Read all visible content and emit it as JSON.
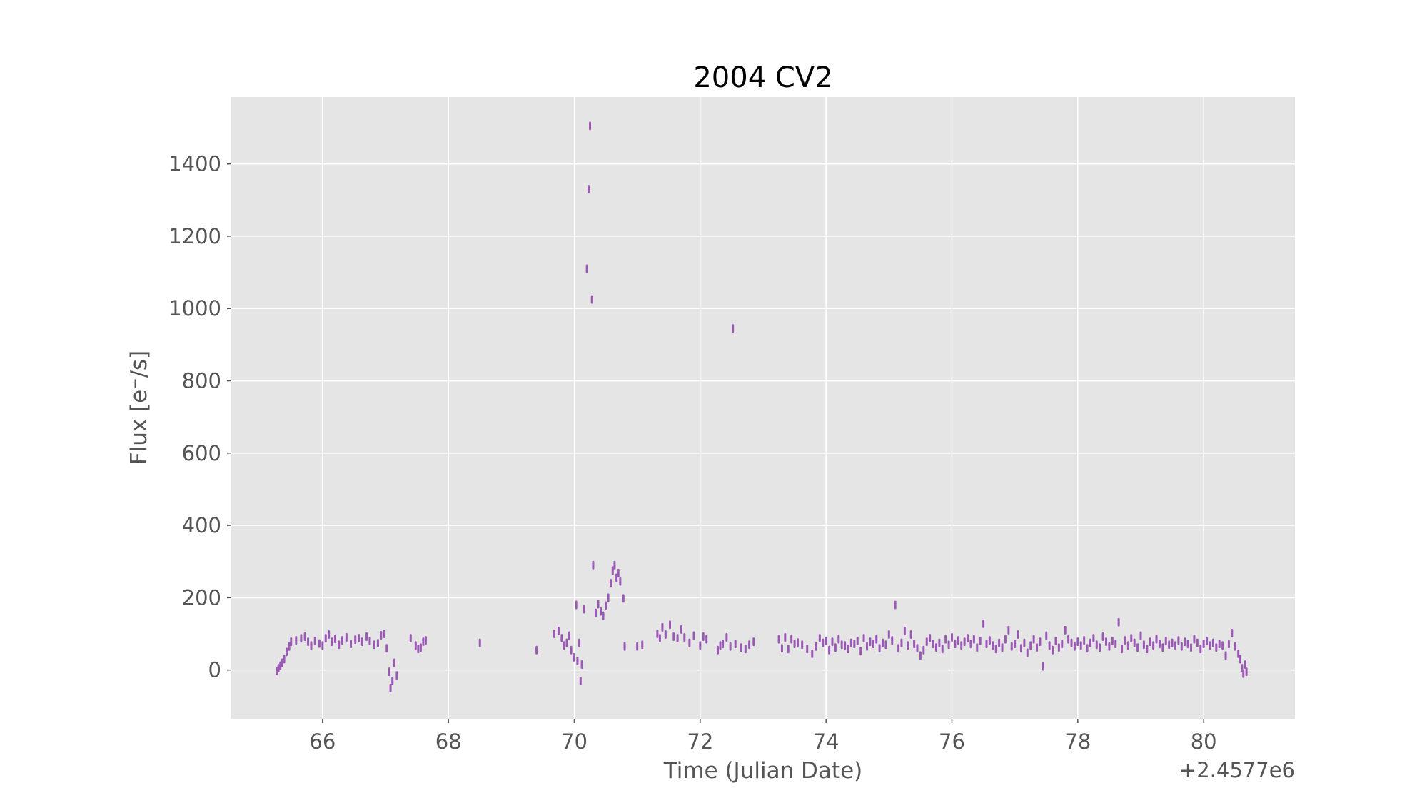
{
  "chart_data": {
    "type": "scatter",
    "title": "2004 CV2",
    "xlabel": "Time (Julian Date)",
    "ylabel": "Flux [e⁻/s]",
    "x_offset_label": "+2.4577e6",
    "xlim": [
      64.55,
      81.45
    ],
    "ylim": [
      -135,
      1585
    ],
    "xticks": [
      66,
      68,
      70,
      72,
      74,
      76,
      78,
      80
    ],
    "yticks": [
      0,
      200,
      400,
      600,
      800,
      1000,
      1200,
      1400
    ],
    "grid": true,
    "background": "#e5e5e5",
    "marker_color": "#9b59b6",
    "series": [
      {
        "name": "",
        "points": [
          [
            65.28,
            -3
          ],
          [
            65.3,
            5
          ],
          [
            65.33,
            12
          ],
          [
            65.36,
            20
          ],
          [
            65.39,
            30
          ],
          [
            65.43,
            50
          ],
          [
            65.47,
            65
          ],
          [
            65.5,
            78
          ],
          [
            65.58,
            82
          ],
          [
            65.66,
            88
          ],
          [
            65.72,
            92
          ],
          [
            65.77,
            78
          ],
          [
            65.82,
            68
          ],
          [
            65.88,
            80
          ],
          [
            65.95,
            73
          ],
          [
            66.0,
            68
          ],
          [
            66.05,
            88
          ],
          [
            66.1,
            98
          ],
          [
            66.15,
            78
          ],
          [
            66.2,
            86
          ],
          [
            66.26,
            70
          ],
          [
            66.31,
            82
          ],
          [
            66.38,
            90
          ],
          [
            66.45,
            72
          ],
          [
            66.52,
            84
          ],
          [
            66.58,
            88
          ],
          [
            66.63,
            78
          ],
          [
            66.7,
            92
          ],
          [
            66.75,
            80
          ],
          [
            66.82,
            70
          ],
          [
            66.88,
            74
          ],
          [
            66.93,
            96
          ],
          [
            66.98,
            100
          ],
          [
            67.02,
            60
          ],
          [
            67.06,
            -5
          ],
          [
            67.08,
            -50
          ],
          [
            67.11,
            -30
          ],
          [
            67.14,
            20
          ],
          [
            67.18,
            -15
          ],
          [
            67.4,
            88
          ],
          [
            67.48,
            68
          ],
          [
            67.52,
            58
          ],
          [
            67.56,
            62
          ],
          [
            67.6,
            78
          ],
          [
            67.64,
            82
          ],
          [
            68.5,
            75
          ],
          [
            69.4,
            55
          ],
          [
            69.68,
            100
          ],
          [
            69.75,
            108
          ],
          [
            69.8,
            88
          ],
          [
            69.84,
            68
          ],
          [
            69.88,
            75
          ],
          [
            69.92,
            95
          ],
          [
            69.95,
            55
          ],
          [
            69.99,
            35
          ],
          [
            70.03,
            180
          ],
          [
            70.05,
            25
          ],
          [
            70.08,
            75
          ],
          [
            70.1,
            -30
          ],
          [
            70.12,
            15
          ],
          [
            70.15,
            168
          ],
          [
            70.2,
            1110
          ],
          [
            70.23,
            1330
          ],
          [
            70.25,
            1505
          ],
          [
            70.28,
            1025
          ],
          [
            70.3,
            290
          ],
          [
            70.34,
            158
          ],
          [
            70.38,
            182
          ],
          [
            70.42,
            162
          ],
          [
            70.46,
            150
          ],
          [
            70.5,
            178
          ],
          [
            70.54,
            200
          ],
          [
            70.58,
            240
          ],
          [
            70.61,
            275
          ],
          [
            70.64,
            290
          ],
          [
            70.67,
            255
          ],
          [
            70.7,
            268
          ],
          [
            70.73,
            245
          ],
          [
            70.78,
            198
          ],
          [
            70.8,
            65
          ],
          [
            71.0,
            65
          ],
          [
            71.08,
            70
          ],
          [
            71.32,
            100
          ],
          [
            71.36,
            88
          ],
          [
            71.4,
            118
          ],
          [
            71.45,
            98
          ],
          [
            71.52,
            125
          ],
          [
            71.58,
            92
          ],
          [
            71.64,
            88
          ],
          [
            71.7,
            112
          ],
          [
            71.75,
            90
          ],
          [
            71.83,
            75
          ],
          [
            71.9,
            95
          ],
          [
            72.0,
            68
          ],
          [
            72.05,
            92
          ],
          [
            72.1,
            85
          ],
          [
            72.28,
            55
          ],
          [
            72.32,
            68
          ],
          [
            72.36,
            72
          ],
          [
            72.42,
            90
          ],
          [
            72.48,
            65
          ],
          [
            72.52,
            945
          ],
          [
            72.56,
            72
          ],
          [
            72.65,
            62
          ],
          [
            72.72,
            58
          ],
          [
            72.78,
            70
          ],
          [
            72.85,
            78
          ],
          [
            73.25,
            85
          ],
          [
            73.3,
            60
          ],
          [
            73.35,
            90
          ],
          [
            73.4,
            58
          ],
          [
            73.45,
            85
          ],
          [
            73.5,
            72
          ],
          [
            73.55,
            76
          ],
          [
            73.62,
            70
          ],
          [
            73.7,
            58
          ],
          [
            73.78,
            45
          ],
          [
            73.84,
            65
          ],
          [
            73.9,
            88
          ],
          [
            73.95,
            75
          ],
          [
            74.0,
            80
          ],
          [
            74.05,
            55
          ],
          [
            74.1,
            78
          ],
          [
            74.15,
            62
          ],
          [
            74.2,
            85
          ],
          [
            74.25,
            70
          ],
          [
            74.3,
            68
          ],
          [
            74.35,
            58
          ],
          [
            74.4,
            75
          ],
          [
            74.45,
            72
          ],
          [
            74.5,
            80
          ],
          [
            74.55,
            52
          ],
          [
            74.6,
            88
          ],
          [
            74.65,
            65
          ],
          [
            74.7,
            78
          ],
          [
            74.75,
            72
          ],
          [
            74.8,
            85
          ],
          [
            74.85,
            60
          ],
          [
            74.9,
            75
          ],
          [
            74.95,
            70
          ],
          [
            75.0,
            98
          ],
          [
            75.05,
            82
          ],
          [
            75.1,
            180
          ],
          [
            75.15,
            60
          ],
          [
            75.2,
            75
          ],
          [
            75.25,
            108
          ],
          [
            75.3,
            68
          ],
          [
            75.35,
            98
          ],
          [
            75.4,
            72
          ],
          [
            75.45,
            60
          ],
          [
            75.5,
            40
          ],
          [
            75.55,
            55
          ],
          [
            75.6,
            78
          ],
          [
            75.65,
            88
          ],
          [
            75.7,
            72
          ],
          [
            75.75,
            62
          ],
          [
            75.8,
            75
          ],
          [
            75.85,
            58
          ],
          [
            75.9,
            85
          ],
          [
            75.95,
            70
          ],
          [
            76.0,
            90
          ],
          [
            76.05,
            72
          ],
          [
            76.1,
            82
          ],
          [
            76.15,
            68
          ],
          [
            76.2,
            78
          ],
          [
            76.25,
            88
          ],
          [
            76.3,
            72
          ],
          [
            76.35,
            85
          ],
          [
            76.4,
            62
          ],
          [
            76.45,
            80
          ],
          [
            76.5,
            128
          ],
          [
            76.55,
            72
          ],
          [
            76.6,
            82
          ],
          [
            76.65,
            68
          ],
          [
            76.7,
            58
          ],
          [
            76.75,
            75
          ],
          [
            76.8,
            62
          ],
          [
            76.85,
            85
          ],
          [
            76.9,
            110
          ],
          [
            76.95,
            65
          ],
          [
            77.0,
            72
          ],
          [
            77.05,
            98
          ],
          [
            77.1,
            60
          ],
          [
            77.15,
            75
          ],
          [
            77.2,
            48
          ],
          [
            77.25,
            68
          ],
          [
            77.3,
            85
          ],
          [
            77.35,
            62
          ],
          [
            77.4,
            78
          ],
          [
            77.45,
            10
          ],
          [
            77.5,
            95
          ],
          [
            77.55,
            68
          ],
          [
            77.6,
            55
          ],
          [
            77.65,
            80
          ],
          [
            77.7,
            62
          ],
          [
            77.75,
            72
          ],
          [
            77.8,
            110
          ],
          [
            77.85,
            85
          ],
          [
            77.9,
            75
          ],
          [
            77.95,
            65
          ],
          [
            78.0,
            78
          ],
          [
            78.05,
            68
          ],
          [
            78.1,
            82
          ],
          [
            78.15,
            60
          ],
          [
            78.2,
            75
          ],
          [
            78.25,
            88
          ],
          [
            78.3,
            70
          ],
          [
            78.35,
            62
          ],
          [
            78.4,
            92
          ],
          [
            78.45,
            78
          ],
          [
            78.5,
            65
          ],
          [
            78.55,
            80
          ],
          [
            78.6,
            72
          ],
          [
            78.65,
            132
          ],
          [
            78.7,
            58
          ],
          [
            78.75,
            82
          ],
          [
            78.8,
            68
          ],
          [
            78.85,
            88
          ],
          [
            78.9,
            75
          ],
          [
            78.95,
            62
          ],
          [
            79.0,
            95
          ],
          [
            79.05,
            70
          ],
          [
            79.1,
            58
          ],
          [
            79.15,
            78
          ],
          [
            79.2,
            68
          ],
          [
            79.25,
            85
          ],
          [
            79.3,
            72
          ],
          [
            79.35,
            62
          ],
          [
            79.4,
            80
          ],
          [
            79.45,
            70
          ],
          [
            79.5,
            75
          ],
          [
            79.55,
            68
          ],
          [
            79.6,
            82
          ],
          [
            79.65,
            65
          ],
          [
            79.7,
            78
          ],
          [
            79.75,
            72
          ],
          [
            79.8,
            62
          ],
          [
            79.85,
            85
          ],
          [
            79.9,
            75
          ],
          [
            79.95,
            58
          ],
          [
            80.0,
            72
          ],
          [
            80.05,
            80
          ],
          [
            80.1,
            68
          ],
          [
            80.15,
            75
          ],
          [
            80.2,
            62
          ],
          [
            80.25,
            72
          ],
          [
            80.3,
            68
          ],
          [
            80.35,
            40
          ],
          [
            80.4,
            72
          ],
          [
            80.45,
            102
          ],
          [
            80.5,
            65
          ],
          [
            80.55,
            45
          ],
          [
            80.58,
            30
          ],
          [
            80.61,
            5
          ],
          [
            80.63,
            -10
          ],
          [
            80.66,
            15
          ],
          [
            80.68,
            -5
          ]
        ]
      }
    ]
  }
}
